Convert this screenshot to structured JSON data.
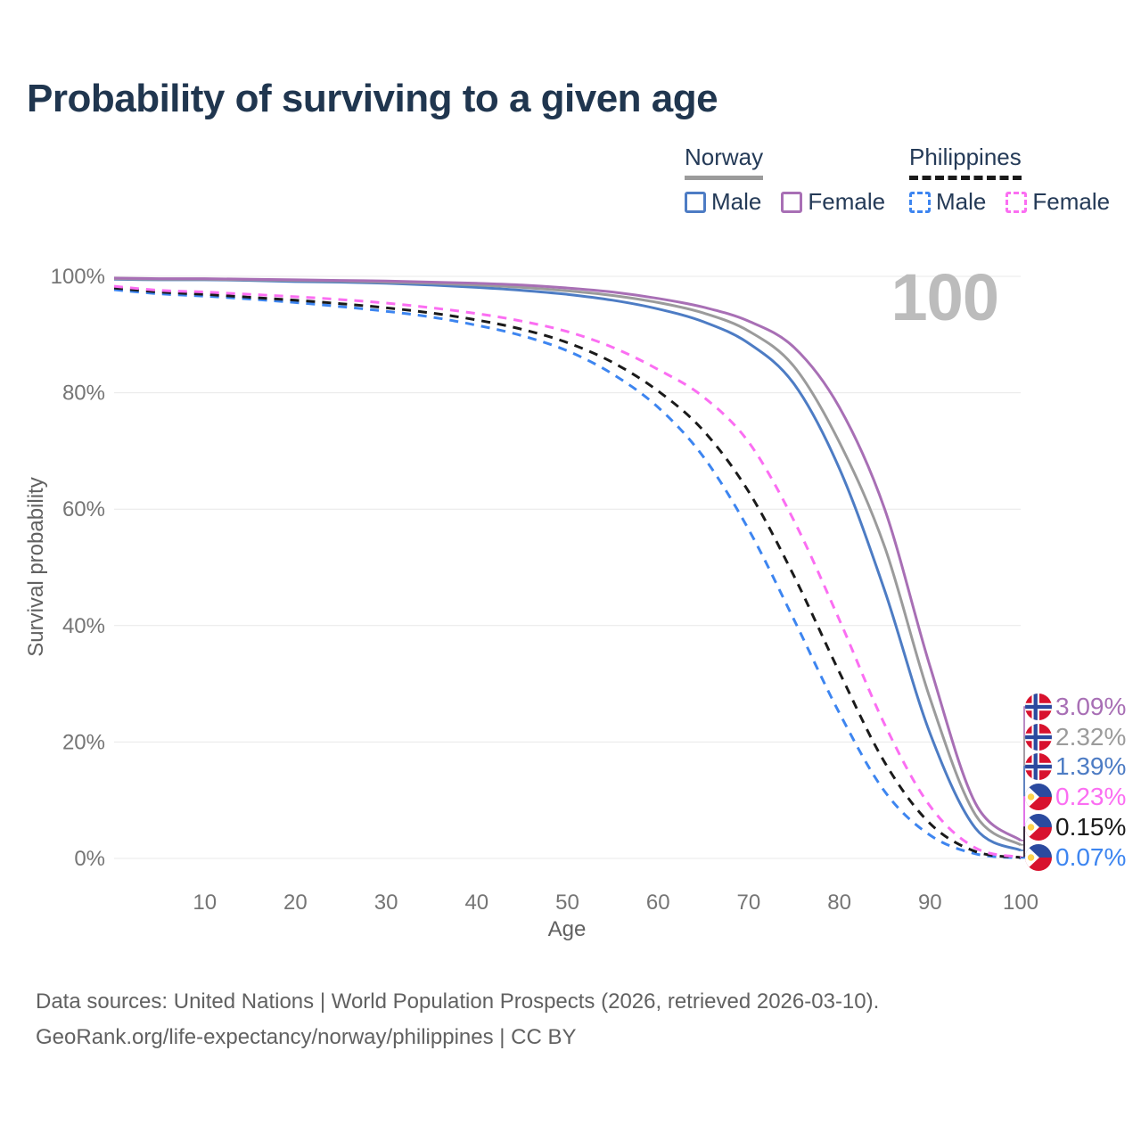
{
  "title": "Probability of surviving to a given age",
  "watermark": {
    "text": "100"
  },
  "legend": {
    "groups": [
      {
        "name": "Norway",
        "line_style": "solid",
        "underline_color": "#9b9b9b",
        "items": [
          {
            "label": "Male",
            "color": "#4d7cc4",
            "dashed": false
          },
          {
            "label": "Female",
            "color": "#a86fb5",
            "dashed": false
          }
        ]
      },
      {
        "name": "Philippines",
        "line_style": "dashed",
        "underline_color": "#1a1a1a",
        "items": [
          {
            "label": "Male",
            "color": "#3d85f0",
            "dashed": true
          },
          {
            "label": "Female",
            "color": "#fb6ef2",
            "dashed": true
          }
        ]
      }
    ]
  },
  "chart_data": {
    "type": "line",
    "title": "Probability of surviving to a given age",
    "xlabel": "Age",
    "ylabel": "Survival probability",
    "xlim": [
      0,
      100
    ],
    "ylim": [
      0,
      100
    ],
    "x_ticks": [
      10,
      20,
      30,
      40,
      50,
      60,
      70,
      80,
      90,
      100
    ],
    "y_ticks": [
      0,
      20,
      40,
      60,
      80,
      100
    ],
    "y_tick_suffix": "%",
    "grid": "horizontal",
    "legend_position": "top-right",
    "current_age_indicator": "100",
    "x": [
      0,
      5,
      10,
      15,
      20,
      25,
      30,
      35,
      40,
      45,
      50,
      55,
      60,
      65,
      70,
      75,
      80,
      85,
      90,
      95,
      100
    ],
    "series": [
      {
        "name": "Norway — Female",
        "country": "Norway",
        "sex": "Female",
        "color": "#a86fb5",
        "dashed": false,
        "flag": "norway",
        "end_label": "3.09%",
        "end_value": 3.09,
        "values": [
          99.7,
          99.6,
          99.6,
          99.5,
          99.4,
          99.3,
          99.2,
          99.0,
          98.8,
          98.5,
          98.0,
          97.3,
          96.2,
          94.7,
          92.3,
          87.8,
          77.5,
          60.0,
          33.0,
          9.5,
          3.09
        ]
      },
      {
        "name": "Norway — Both sexes",
        "country": "Norway",
        "sex": "Both",
        "color": "#9b9b9b",
        "dashed": false,
        "flag": "norway",
        "end_label": "2.32%",
        "end_value": 2.32,
        "values": [
          99.6,
          99.5,
          99.5,
          99.4,
          99.3,
          99.2,
          99.0,
          98.8,
          98.5,
          98.1,
          97.5,
          96.7,
          95.5,
          93.7,
          90.6,
          84.5,
          71.5,
          53.5,
          27.5,
          7.5,
          2.32
        ]
      },
      {
        "name": "Norway — Male",
        "country": "Norway",
        "sex": "Male",
        "color": "#4d7cc4",
        "dashed": false,
        "flag": "norway",
        "end_label": "1.39%",
        "end_value": 1.39,
        "values": [
          99.5,
          99.4,
          99.4,
          99.3,
          99.1,
          99.0,
          98.8,
          98.5,
          98.1,
          97.6,
          96.9,
          95.9,
          94.4,
          92.2,
          88.5,
          81.5,
          67.0,
          46.0,
          21.5,
          5.2,
          1.39
        ]
      },
      {
        "name": "Philippines — Female",
        "country": "Philippines",
        "sex": "Female",
        "color": "#fb6ef2",
        "dashed": true,
        "flag": "philippines",
        "end_label": "0.23%",
        "end_value": 0.23,
        "values": [
          98.3,
          97.6,
          97.3,
          96.9,
          96.5,
          96.0,
          95.4,
          94.6,
          93.6,
          92.3,
          90.5,
          87.8,
          84.0,
          79.3,
          71.5,
          58.0,
          41.0,
          23.0,
          9.0,
          1.8,
          0.23
        ]
      },
      {
        "name": "Philippines — Both sexes",
        "country": "Philippines",
        "sex": "Both",
        "color": "#1a1a1a",
        "dashed": true,
        "flag": "philippines",
        "end_label": "0.15%",
        "end_value": 0.15,
        "values": [
          98.0,
          97.3,
          96.9,
          96.4,
          95.9,
          95.3,
          94.6,
          93.7,
          92.5,
          90.9,
          88.6,
          85.2,
          80.3,
          73.5,
          63.0,
          48.5,
          32.0,
          16.5,
          6.0,
          1.2,
          0.15
        ]
      },
      {
        "name": "Philippines — Male",
        "country": "Philippines",
        "sex": "Male",
        "color": "#3d85f0",
        "dashed": true,
        "flag": "philippines",
        "end_label": "0.07%",
        "end_value": 0.07,
        "values": [
          97.7,
          97.0,
          96.6,
          96.1,
          95.5,
          94.8,
          94.0,
          93.0,
          91.6,
          89.8,
          87.2,
          83.2,
          77.5,
          69.0,
          56.5,
          41.0,
          25.0,
          11.5,
          4.0,
          0.8,
          0.07
        ]
      }
    ]
  },
  "footer": {
    "line1": "Data sources: United Nations | World Population Prospects (2026, retrieved 2026-03-10).",
    "line2": "GeoRank.org/life-expectancy/norway/philippines | CC BY"
  }
}
